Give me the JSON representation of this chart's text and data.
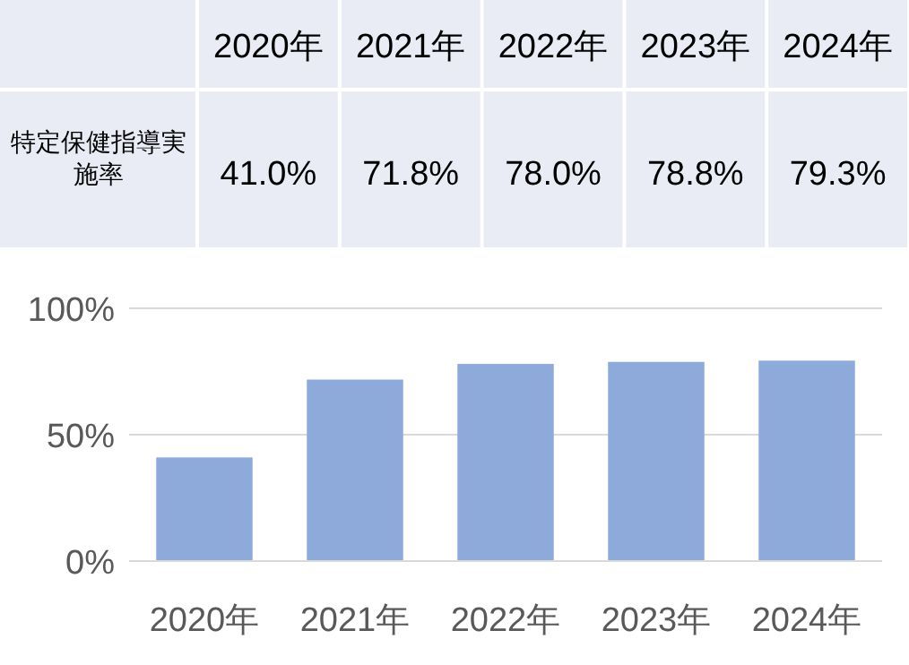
{
  "chart_data": {
    "type": "bar",
    "categories": [
      "2020年",
      "2021年",
      "2022年",
      "2023年",
      "2024年"
    ],
    "values": [
      41.0,
      71.8,
      78.0,
      78.8,
      79.3
    ],
    "value_labels": [
      "41.0%",
      "71.8%",
      "78.0%",
      "78.8%",
      "79.3%"
    ],
    "color": "#8eaadb",
    "ylim": [
      0,
      100
    ],
    "yticks": [
      {
        "value": 0,
        "label": "0%"
      },
      {
        "value": 50,
        "label": "50%"
      },
      {
        "value": 100,
        "label": "100%"
      }
    ],
    "grid": "y",
    "annotations": [
      "特定保健指導実施率"
    ]
  }
}
